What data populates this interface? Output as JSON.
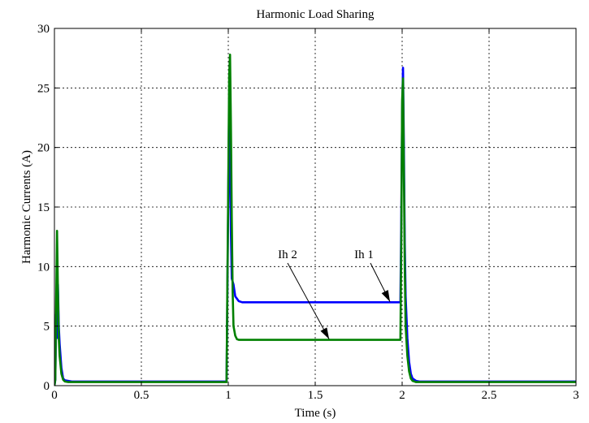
{
  "chart_data": {
    "type": "line",
    "title": "Harmonic Load Sharing",
    "xlabel": "Time (s)",
    "ylabel": "Harmonic Currents (A)",
    "xlim": [
      0,
      3
    ],
    "ylim": [
      0,
      30
    ],
    "x_ticks": [
      0,
      0.5,
      1,
      1.5,
      2,
      2.5,
      3
    ],
    "x_tick_labels": [
      "0",
      "0.5",
      "1",
      "1.5",
      "2",
      "2.5",
      "3"
    ],
    "y_ticks": [
      0,
      5,
      10,
      15,
      20,
      25,
      30
    ],
    "y_tick_labels": [
      "0",
      "5",
      "10",
      "15",
      "20",
      "25",
      "30"
    ],
    "grid": true,
    "series": [
      {
        "name": "Ih 1",
        "color": "#0000ff",
        "x": [
          0,
          0.005,
          0.01,
          0.015,
          0.02,
          0.025,
          0.03,
          0.04,
          0.05,
          0.06,
          0.08,
          0.1,
          0.2,
          0.5,
          0.99,
          0.995,
          1.0,
          1.005,
          1.01,
          1.015,
          1.02,
          1.03,
          1.04,
          1.05,
          1.06,
          1.08,
          1.1,
          1.5,
          1.99,
          1.995,
          2.0,
          2.005,
          2.01,
          2.015,
          2.02,
          2.03,
          2.04,
          2.05,
          2.06,
          2.08,
          2.1,
          3.0
        ],
        "y": [
          0,
          0.5,
          6.0,
          4.0,
          8.5,
          5.0,
          3.5,
          1.5,
          0.6,
          0.45,
          0.4,
          0.35,
          0.35,
          0.35,
          0.35,
          8.0,
          16.0,
          24.0,
          19.0,
          13.0,
          9.0,
          8.5,
          7.5,
          7.3,
          7.1,
          7.0,
          7.0,
          7.0,
          7.0,
          14.0,
          23.0,
          26.7,
          20.0,
          12.0,
          7.5,
          4.0,
          2.0,
          1.0,
          0.6,
          0.4,
          0.35,
          0.35
        ]
      },
      {
        "name": "Ih 2",
        "color": "#008000",
        "x": [
          0,
          0.005,
          0.01,
          0.015,
          0.02,
          0.025,
          0.03,
          0.04,
          0.05,
          0.06,
          0.08,
          0.1,
          0.2,
          0.5,
          0.99,
          0.995,
          1.0,
          1.005,
          1.01,
          1.015,
          1.02,
          1.025,
          1.03,
          1.04,
          1.05,
          1.06,
          1.08,
          1.1,
          1.5,
          1.99,
          1.995,
          2.0,
          2.005,
          2.01,
          2.015,
          2.02,
          2.03,
          2.04,
          2.05,
          2.06,
          2.08,
          2.1,
          3.0
        ],
        "y": [
          0,
          0.5,
          7.0,
          13.0,
          8.0,
          4.0,
          2.5,
          1.0,
          0.5,
          0.35,
          0.3,
          0.3,
          0.3,
          0.3,
          0.3,
          9.0,
          17.0,
          26.0,
          27.8,
          22.0,
          14.0,
          8.0,
          5.0,
          4.2,
          3.9,
          3.85,
          3.85,
          3.85,
          3.85,
          3.85,
          12.0,
          24.0,
          25.8,
          18.0,
          10.0,
          5.0,
          2.5,
          1.2,
          0.6,
          0.4,
          0.3,
          0.3,
          0.3
        ]
      }
    ],
    "annotations": [
      {
        "text": "Ih 1",
        "arrow_to": [
          1.93,
          7.05
        ]
      },
      {
        "text": "Ih 2",
        "arrow_to": [
          1.58,
          3.9
        ]
      }
    ]
  }
}
